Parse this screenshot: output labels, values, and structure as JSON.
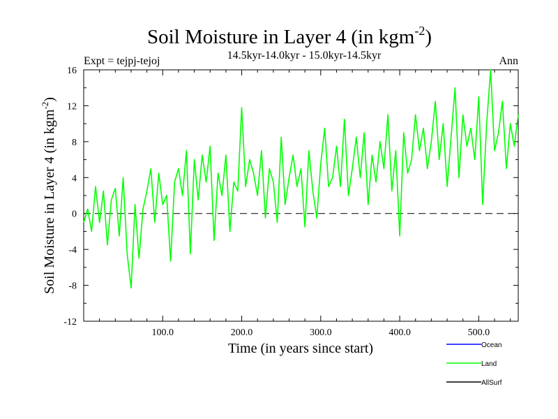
{
  "chart_data": {
    "type": "line",
    "title": "Soil Moisture in Layer 4 (in kgm",
    "title_sup": "-2",
    "title_close": ")",
    "subtitle": "14.5kyr-14.0kyr - 15.0kyr-14.5kyr",
    "expt_label": "Expt = tejpj-tejoj",
    "period_label": "Ann",
    "xlabel": "Time (in years since start)",
    "ylabel": "Soil Moisture in Layer 4 (in kgm",
    "ylabel_sup": "-2",
    "ylabel_close": ")",
    "xlim": [
      0,
      550
    ],
    "ylim": [
      -12,
      16
    ],
    "x_ticks": [
      100,
      200,
      300,
      400,
      500
    ],
    "x_tick_labels": [
      "100.0",
      "200.0",
      "300.0",
      "400.0",
      "500.0"
    ],
    "y_ticks": [
      -12,
      -8,
      -4,
      0,
      4,
      8,
      12,
      16
    ],
    "y_tick_labels": [
      "-12",
      "-8",
      "-4",
      "0",
      "4",
      "8",
      "12",
      "16"
    ],
    "zero_line": {
      "y": 0,
      "style": "dashed"
    },
    "legend": [
      {
        "name": "Ocean",
        "color": "#0000ff"
      },
      {
        "name": "Land",
        "color": "#00ff00"
      },
      {
        "name": "AllSurf",
        "color": "#000000"
      }
    ],
    "series": [
      {
        "name": "Land",
        "color": "#00ff00",
        "x": [
          0,
          5,
          10,
          15,
          20,
          25,
          30,
          35,
          40,
          45,
          50,
          55,
          60,
          65,
          70,
          75,
          80,
          85,
          90,
          95,
          100,
          105,
          110,
          115,
          120,
          125,
          130,
          135,
          140,
          145,
          150,
          155,
          160,
          165,
          170,
          175,
          180,
          185,
          190,
          195,
          200,
          205,
          210,
          215,
          220,
          225,
          230,
          235,
          240,
          245,
          250,
          255,
          260,
          265,
          270,
          275,
          280,
          285,
          290,
          295,
          300,
          305,
          310,
          315,
          320,
          325,
          330,
          335,
          340,
          345,
          350,
          355,
          360,
          365,
          370,
          375,
          380,
          385,
          390,
          395,
          400,
          405,
          410,
          415,
          420,
          425,
          430,
          435,
          440,
          445,
          450,
          455,
          460,
          465,
          470,
          475,
          480,
          485,
          490,
          495,
          500,
          505,
          510,
          515,
          520,
          525,
          530,
          535,
          540,
          545,
          550
        ],
        "values": [
          -1,
          0.5,
          -2,
          3,
          -1,
          2.5,
          -3.5,
          1.5,
          2.8,
          -2.5,
          4,
          -4.5,
          -8.3,
          1,
          -5,
          0.5,
          2.5,
          5,
          -1,
          4.5,
          1,
          2,
          -5.3,
          3.5,
          5,
          2,
          7,
          -4.5,
          6,
          1.5,
          6.5,
          3.5,
          7.5,
          -3,
          4.5,
          2,
          6.5,
          -2,
          3.5,
          2.5,
          11.8,
          3,
          6,
          4.5,
          2,
          7,
          -0.5,
          5,
          3.5,
          -1,
          8.5,
          1,
          4,
          6.5,
          3,
          5,
          -1.5,
          7,
          2.5,
          -0.5,
          5.5,
          9.5,
          3,
          4,
          7.5,
          3,
          10.5,
          2,
          5,
          8.5,
          4,
          9,
          1,
          6.5,
          3.5,
          8,
          5,
          11,
          2.5,
          7,
          -2.5,
          9,
          4.5,
          6,
          11,
          7,
          9.5,
          5,
          8,
          12.5,
          6,
          10,
          3,
          8.5,
          14,
          4,
          11,
          7.5,
          9.5,
          6,
          13,
          1,
          10,
          16,
          7,
          9,
          12.5,
          5,
          10,
          7.5,
          11
        ]
      }
    ]
  }
}
